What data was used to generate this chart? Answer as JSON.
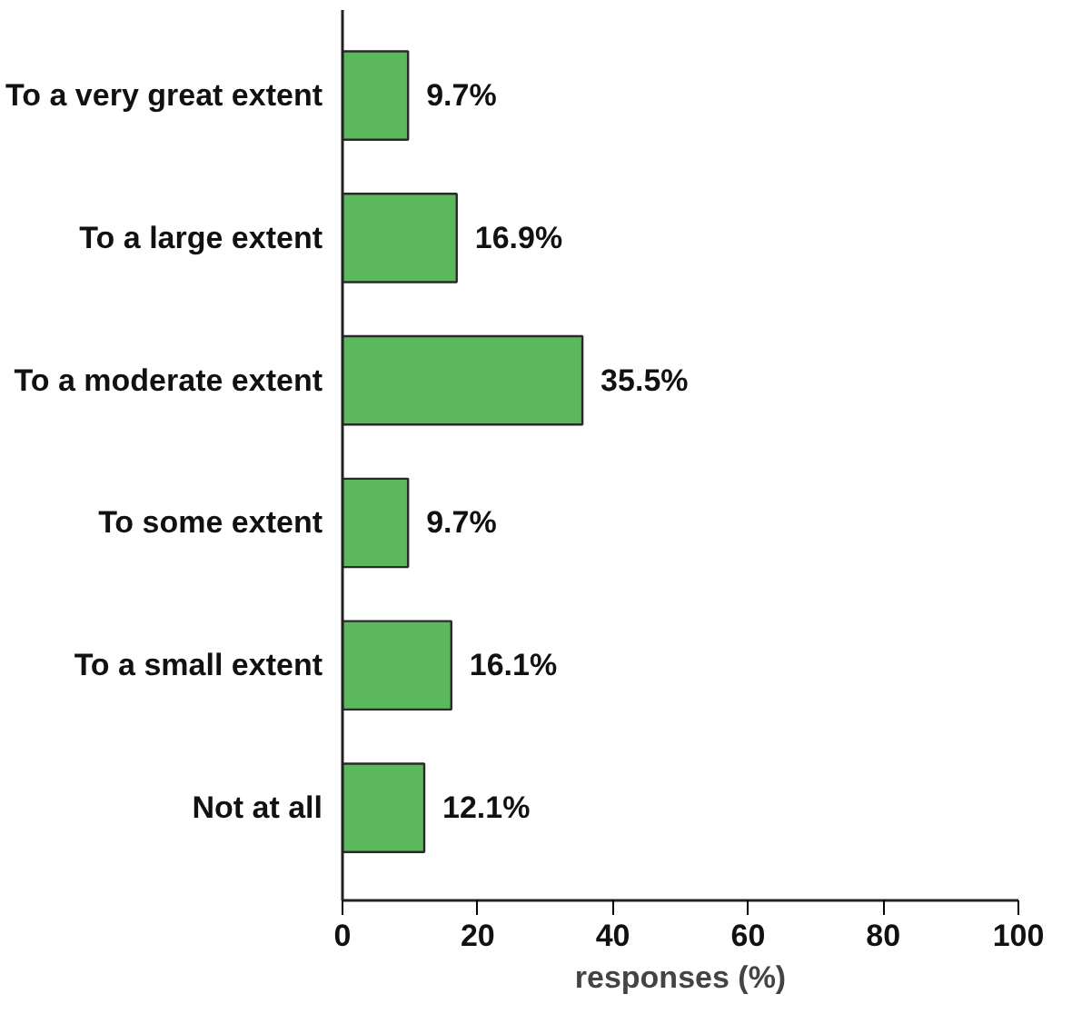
{
  "chart_data": {
    "type": "bar",
    "orientation": "horizontal",
    "xlabel": "responses (%)",
    "categories": [
      "To a very great extent",
      "To a large extent",
      "To a moderate extent",
      "To some extent",
      "To a small extent",
      "Not at all"
    ],
    "values": [
      9.7,
      16.9,
      35.5,
      9.7,
      16.1,
      12.1
    ],
    "value_labels": [
      "9.7%",
      "16.9%",
      "35.5%",
      "9.7%",
      "16.1%",
      "12.1%"
    ],
    "color": "#5cb85c",
    "xlim": [
      0,
      100
    ],
    "xticks": [
      0,
      20,
      40,
      60,
      80,
      100
    ],
    "grid": false
  }
}
